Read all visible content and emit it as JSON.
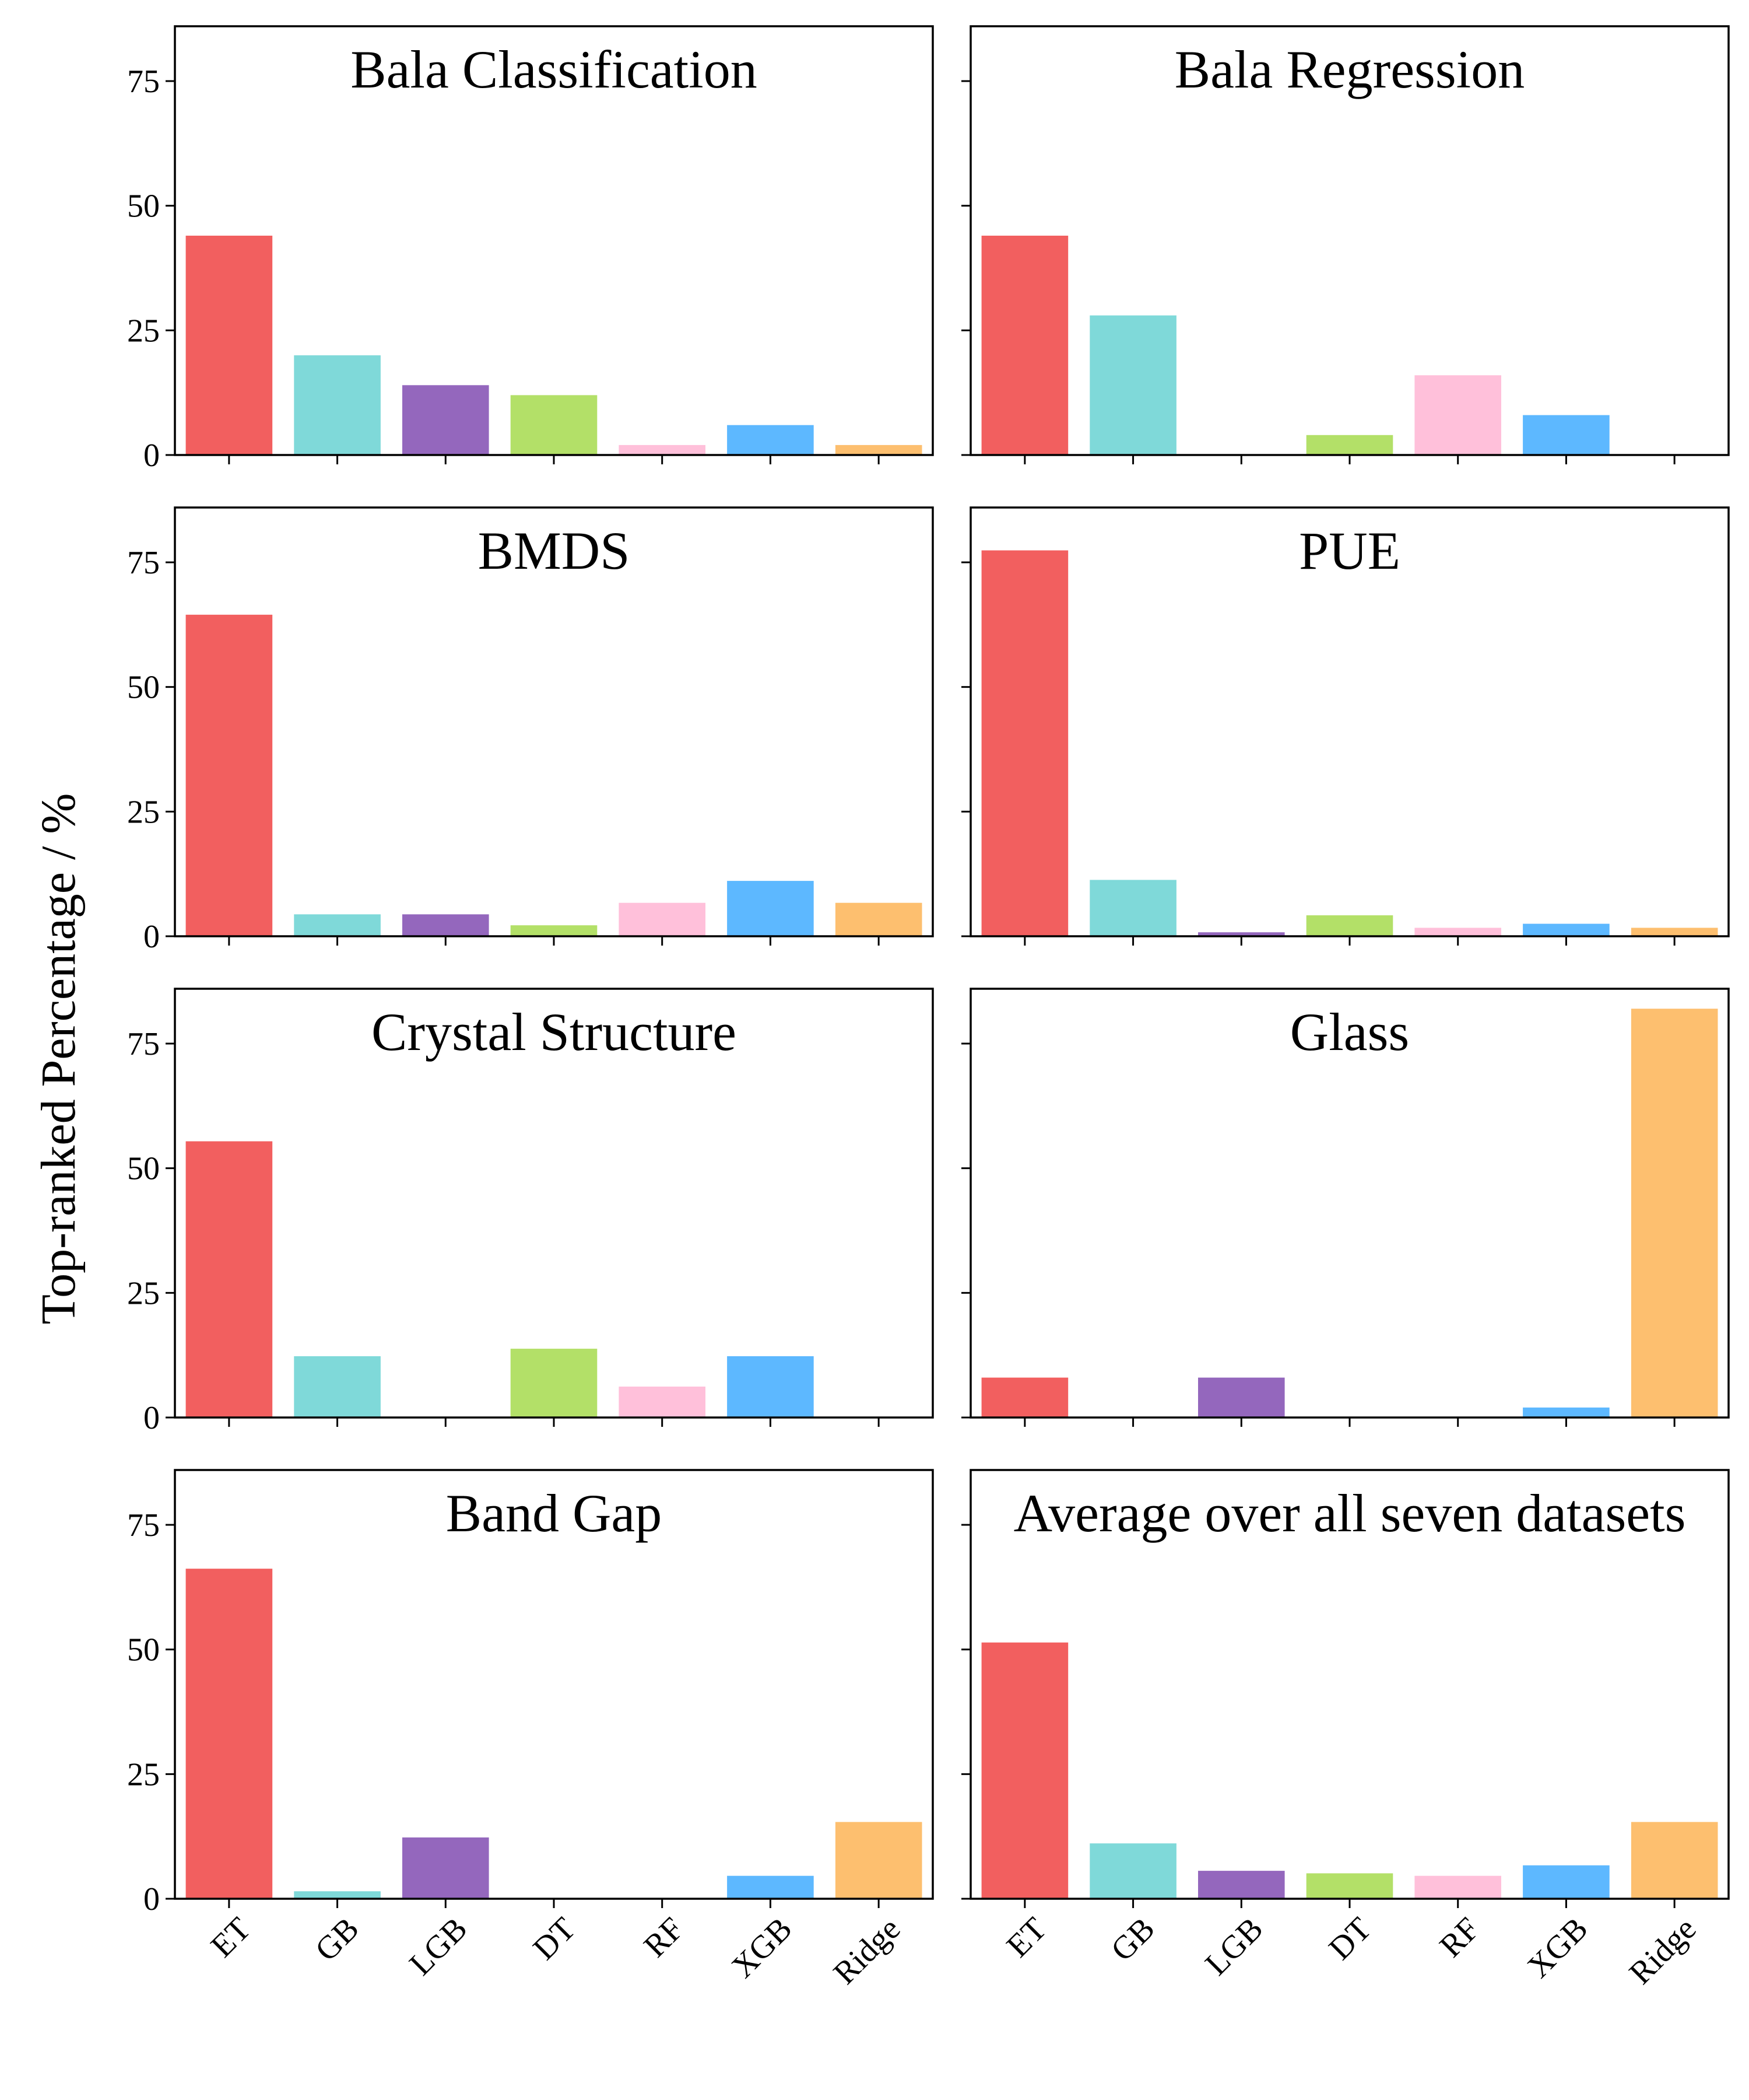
{
  "chart_data": {
    "type": "bar",
    "ylabel": "Top-ranked Percentage / %",
    "categories": [
      "ET",
      "GB",
      "LGB",
      "DT",
      "RF",
      "XGB",
      "Ridge"
    ],
    "colors": [
      "#F25F5F",
      "#7FD9D9",
      "#9467BD",
      "#B3E068",
      "#FFC0DA",
      "#5DB8FF",
      "#FDBF6F"
    ],
    "ylim": [
      0,
      86
    ],
    "yticks": [
      0,
      25,
      50,
      75
    ],
    "panels": [
      {
        "title": "Bala Classification",
        "values": [
          44,
          20,
          14,
          12,
          2,
          6,
          2
        ]
      },
      {
        "title": "Bala Regression",
        "values": [
          44,
          28,
          0,
          4,
          16,
          8,
          0
        ]
      },
      {
        "title": "BMDS",
        "values": [
          64.5,
          4.4,
          4.4,
          2.2,
          6.7,
          11.1,
          6.7
        ]
      },
      {
        "title": "PUE",
        "values": [
          77.4,
          11.3,
          0.8,
          4.2,
          1.7,
          2.5,
          1.7
        ]
      },
      {
        "title": "Crystal Structure",
        "values": [
          55.4,
          12.3,
          0,
          13.8,
          6.2,
          12.3,
          0
        ]
      },
      {
        "title": "Glass",
        "values": [
          8,
          0,
          8,
          0,
          0,
          2,
          82
        ]
      },
      {
        "title": "Band Gap",
        "values": [
          66.2,
          1.5,
          12.3,
          0,
          0,
          4.6,
          15.4
        ]
      },
      {
        "title": "Average over all seven datasets",
        "values": [
          51.4,
          11.1,
          5.6,
          5.1,
          4.6,
          6.7,
          15.4
        ]
      }
    ]
  }
}
